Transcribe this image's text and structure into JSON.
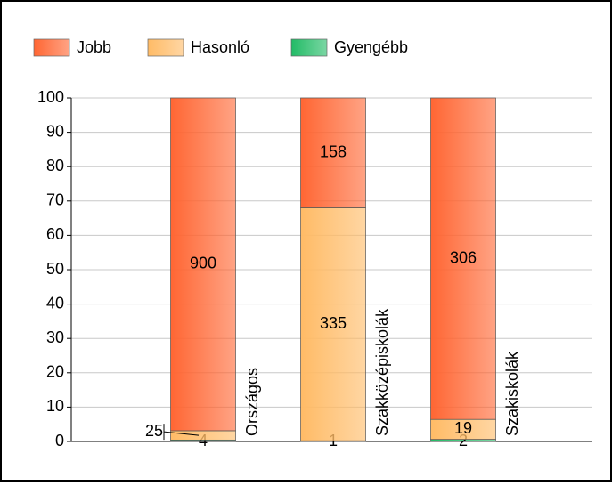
{
  "chart_data": {
    "type": "bar",
    "stacking": "percent",
    "categories": [
      "Országos",
      "Szakközépiskolák",
      "Szakiskolák"
    ],
    "series": [
      {
        "name": "Jobb",
        "color": "#ff6633",
        "values": [
          900,
          158,
          306
        ]
      },
      {
        "name": "Hasonló",
        "color": "#ffbb66",
        "values": [
          25,
          335,
          19
        ]
      },
      {
        "name": "Gyengébb",
        "color": "#22bb66",
        "values": [
          4,
          1,
          2
        ]
      }
    ],
    "ylim": [
      0,
      100
    ],
    "yticks": [
      0,
      10,
      20,
      30,
      40,
      50,
      60,
      70,
      80,
      90,
      100
    ],
    "grid": true
  }
}
